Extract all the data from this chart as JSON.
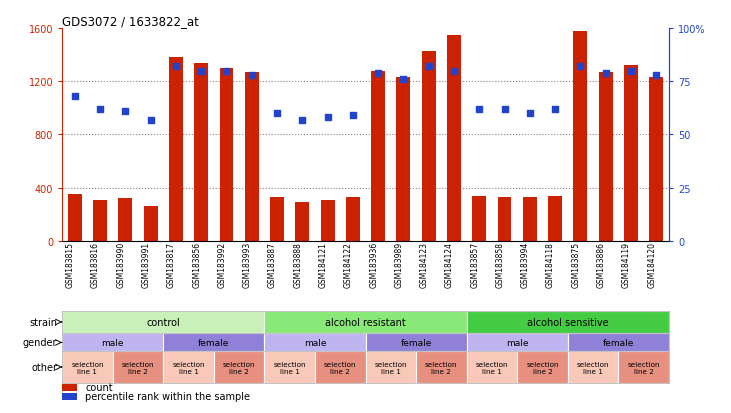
{
  "title": "GDS3072 / 1633822_at",
  "samples": [
    "GSM183815",
    "GSM183816",
    "GSM183990",
    "GSM183991",
    "GSM183817",
    "GSM183856",
    "GSM183992",
    "GSM183993",
    "GSM183887",
    "GSM183888",
    "GSM184121",
    "GSM184122",
    "GSM183936",
    "GSM183989",
    "GSM184123",
    "GSM184124",
    "GSM183857",
    "GSM183858",
    "GSM183994",
    "GSM184118",
    "GSM183875",
    "GSM183886",
    "GSM184119",
    "GSM184120"
  ],
  "counts": [
    350,
    310,
    320,
    260,
    1380,
    1340,
    1300,
    1270,
    330,
    290,
    310,
    330,
    1280,
    1230,
    1430,
    1550,
    340,
    330,
    330,
    340,
    1580,
    1270,
    1320,
    1230
  ],
  "percentiles": [
    68,
    62,
    61,
    57,
    82,
    80,
    80,
    78,
    60,
    57,
    58,
    59,
    79,
    76,
    82,
    80,
    62,
    62,
    60,
    62,
    82,
    79,
    80,
    78
  ],
  "strain_groups": [
    {
      "label": "control",
      "start": 0,
      "end": 8,
      "color": "#c8f0b8"
    },
    {
      "label": "alcohol resistant",
      "start": 8,
      "end": 16,
      "color": "#88e878"
    },
    {
      "label": "alcohol sensitive",
      "start": 16,
      "end": 24,
      "color": "#44cc44"
    }
  ],
  "gender_groups": [
    {
      "label": "male",
      "start": 0,
      "end": 4,
      "color": "#c0b4f0"
    },
    {
      "label": "female",
      "start": 4,
      "end": 8,
      "color": "#9080d8"
    },
    {
      "label": "male",
      "start": 8,
      "end": 12,
      "color": "#c0b4f0"
    },
    {
      "label": "female",
      "start": 12,
      "end": 16,
      "color": "#9080d8"
    },
    {
      "label": "male",
      "start": 16,
      "end": 20,
      "color": "#c0b4f0"
    },
    {
      "label": "female",
      "start": 20,
      "end": 24,
      "color": "#9080d8"
    }
  ],
  "other_groups": [
    {
      "label": "selection\nline 1",
      "start": 0,
      "end": 2,
      "color": "#f8c8b8"
    },
    {
      "label": "selection\nline 2",
      "start": 2,
      "end": 4,
      "color": "#e89080"
    },
    {
      "label": "selection\nline 1",
      "start": 4,
      "end": 6,
      "color": "#f8c8b8"
    },
    {
      "label": "selection\nline 2",
      "start": 6,
      "end": 8,
      "color": "#e89080"
    },
    {
      "label": "selection\nline 1",
      "start": 8,
      "end": 10,
      "color": "#f8c8b8"
    },
    {
      "label": "selection\nline 2",
      "start": 10,
      "end": 12,
      "color": "#e89080"
    },
    {
      "label": "selection\nline 1",
      "start": 12,
      "end": 14,
      "color": "#f8c8b8"
    },
    {
      "label": "selection\nline 2",
      "start": 14,
      "end": 16,
      "color": "#e89080"
    },
    {
      "label": "selection\nline 1",
      "start": 16,
      "end": 18,
      "color": "#f8c8b8"
    },
    {
      "label": "selection\nline 2",
      "start": 18,
      "end": 20,
      "color": "#e89080"
    },
    {
      "label": "selection\nline 1",
      "start": 20,
      "end": 22,
      "color": "#f8c8b8"
    },
    {
      "label": "selection\nline 2",
      "start": 22,
      "end": 24,
      "color": "#e89080"
    }
  ],
  "bar_color": "#cc2200",
  "dot_color": "#2244cc",
  "ylim_left": [
    0,
    1600
  ],
  "ylim_right": [
    0,
    100
  ],
  "yticks_left": [
    0,
    400,
    800,
    1200,
    1600
  ],
  "yticks_right": [
    0,
    25,
    50,
    75,
    100
  ],
  "ytick_labels_left": [
    "0",
    "400",
    "800",
    "1200",
    "1600"
  ],
  "ytick_labels_right": [
    "0",
    "25",
    "50",
    "75",
    "100%"
  ],
  "grid_lines": [
    400,
    800,
    1200
  ],
  "legend_count_label": "count",
  "legend_pct_label": "percentile rank within the sample"
}
